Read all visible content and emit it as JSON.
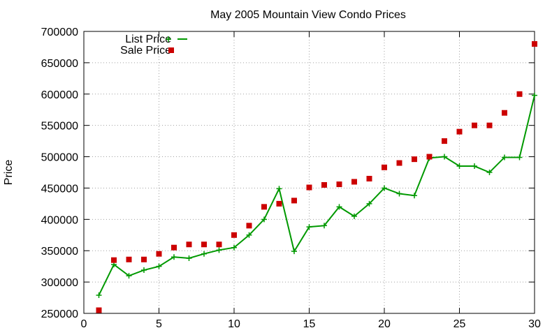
{
  "chart_data": {
    "type": "line",
    "title": "May 2005 Mountain View Condo Prices",
    "xlabel": "",
    "ylabel": "Price",
    "xlim": [
      0,
      30
    ],
    "ylim": [
      250000,
      700000
    ],
    "xticks": [
      "0",
      "5",
      "10",
      "15",
      "20",
      "25",
      "30"
    ],
    "yticks": [
      "250000",
      "300000",
      "350000",
      "400000",
      "450000",
      "500000",
      "550000",
      "600000",
      "650000",
      "700000"
    ],
    "grid": true,
    "legend_position": "top-left",
    "x": [
      1,
      2,
      3,
      4,
      5,
      6,
      7,
      8,
      9,
      10,
      11,
      12,
      13,
      14,
      15,
      16,
      17,
      18,
      19,
      20,
      21,
      22,
      23,
      24,
      25,
      26,
      27,
      28,
      29,
      30
    ],
    "series": [
      {
        "name": "List Price",
        "style": "line-with-plus-markers",
        "color": "#009900",
        "values": [
          279000,
          328000,
          310000,
          319000,
          325000,
          340000,
          338000,
          345000,
          351000,
          355000,
          375000,
          400000,
          449000,
          349000,
          388000,
          390000,
          420000,
          405000,
          425000,
          450000,
          441000,
          438000,
          498000,
          500000,
          485000,
          485000,
          475000,
          499000,
          499000,
          598000
        ]
      },
      {
        "name": "Sale Price",
        "style": "square-markers",
        "color": "#cc0000",
        "values": [
          255000,
          335000,
          336000,
          336000,
          345000,
          355000,
          360000,
          360000,
          360000,
          375000,
          390000,
          420000,
          425000,
          430000,
          451000,
          455000,
          456000,
          460000,
          465000,
          483000,
          490000,
          496000,
          500000,
          525000,
          540000,
          550000,
          550000,
          570000,
          600000,
          680000
        ]
      }
    ]
  }
}
